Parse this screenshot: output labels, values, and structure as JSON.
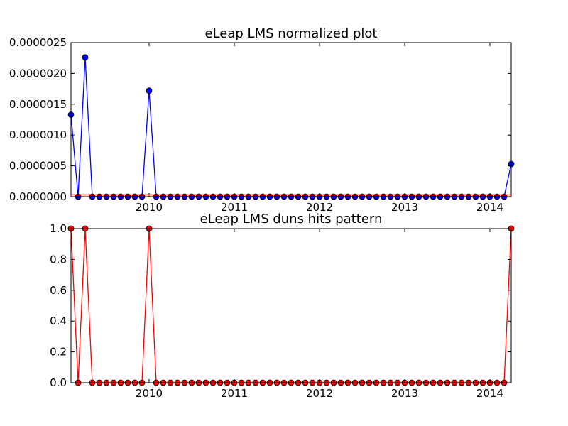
{
  "chart_data": [
    {
      "type": "line",
      "title": "eLeap LMS normalized plot",
      "xlabel": "",
      "ylabel": "",
      "x_ticks": [
        "2010",
        "2011",
        "2012",
        "2013",
        "2014"
      ],
      "y_ticks": [
        "0.0000000",
        "0.0000005",
        "0.0000010",
        "0.0000015",
        "0.0000020",
        "0.0000025"
      ],
      "ylim": [
        0,
        2.5e-06
      ],
      "grid": false,
      "series": [
        {
          "name": "",
          "color": "#0000ff",
          "marker_color": "#0000ff",
          "x_start": "2009-02",
          "x_step": "1 month",
          "values": [
            1.33e-06,
            0,
            2.26e-06,
            0,
            0,
            0,
            0,
            0,
            0,
            0,
            0,
            1.72e-06,
            0,
            0,
            0,
            0,
            0,
            0,
            0,
            0,
            0,
            0,
            0,
            0,
            0,
            0,
            0,
            0,
            0,
            0,
            0,
            0,
            0,
            0,
            0,
            0,
            0,
            0,
            0,
            0,
            0,
            0,
            0,
            0,
            0,
            0,
            0,
            0,
            0,
            0,
            0,
            0,
            0,
            0,
            0,
            0,
            0,
            0,
            0,
            0,
            0,
            0,
            5.3e-07
          ]
        },
        {
          "name": "",
          "color": "#ff0000",
          "values": [
            3e-08,
            3e-08,
            3e-08,
            3e-08,
            3e-08,
            3e-08,
            3e-08,
            3e-08,
            3e-08,
            3e-08,
            3e-08,
            3e-08,
            3e-08,
            3e-08,
            3e-08,
            3e-08,
            3e-08,
            3e-08,
            3e-08,
            3e-08,
            3e-08,
            3e-08,
            3e-08,
            3e-08,
            3e-08,
            3e-08,
            3e-08,
            3e-08,
            3e-08,
            3e-08,
            3e-08,
            3e-08,
            3e-08,
            3e-08,
            3e-08,
            3e-08,
            3e-08,
            3e-08,
            3e-08,
            3e-08,
            3e-08,
            3e-08,
            3e-08,
            3e-08,
            3e-08,
            3e-08,
            3e-08,
            3e-08,
            3e-08,
            3e-08,
            3e-08,
            3e-08,
            3e-08,
            3e-08,
            3e-08,
            3e-08,
            3e-08,
            3e-08,
            3e-08,
            3e-08,
            3e-08,
            3e-08,
            3e-08
          ]
        }
      ]
    },
    {
      "type": "line",
      "title": "eLeap LMS duns hits pattern",
      "xlabel": "",
      "ylabel": "",
      "x_ticks": [
        "2010",
        "2011",
        "2012",
        "2013",
        "2014"
      ],
      "y_ticks": [
        "0.0",
        "0.2",
        "0.4",
        "0.6",
        "0.8",
        "1.0"
      ],
      "ylim": [
        0,
        1
      ],
      "grid": false,
      "series": [
        {
          "name": "",
          "color": "#ff0000",
          "marker_color": "#ff0000",
          "x_start": "2009-02",
          "x_step": "1 month",
          "values": [
            1,
            0,
            1,
            0,
            0,
            0,
            0,
            0,
            0,
            0,
            0,
            1,
            0,
            0,
            0,
            0,
            0,
            0,
            0,
            0,
            0,
            0,
            0,
            0,
            0,
            0,
            0,
            0,
            0,
            0,
            0,
            0,
            0,
            0,
            0,
            0,
            0,
            0,
            0,
            0,
            0,
            0,
            0,
            0,
            0,
            0,
            0,
            0,
            0,
            0,
            0,
            0,
            0,
            0,
            0,
            0,
            0,
            0,
            0,
            0,
            0,
            0,
            1
          ]
        }
      ]
    }
  ]
}
